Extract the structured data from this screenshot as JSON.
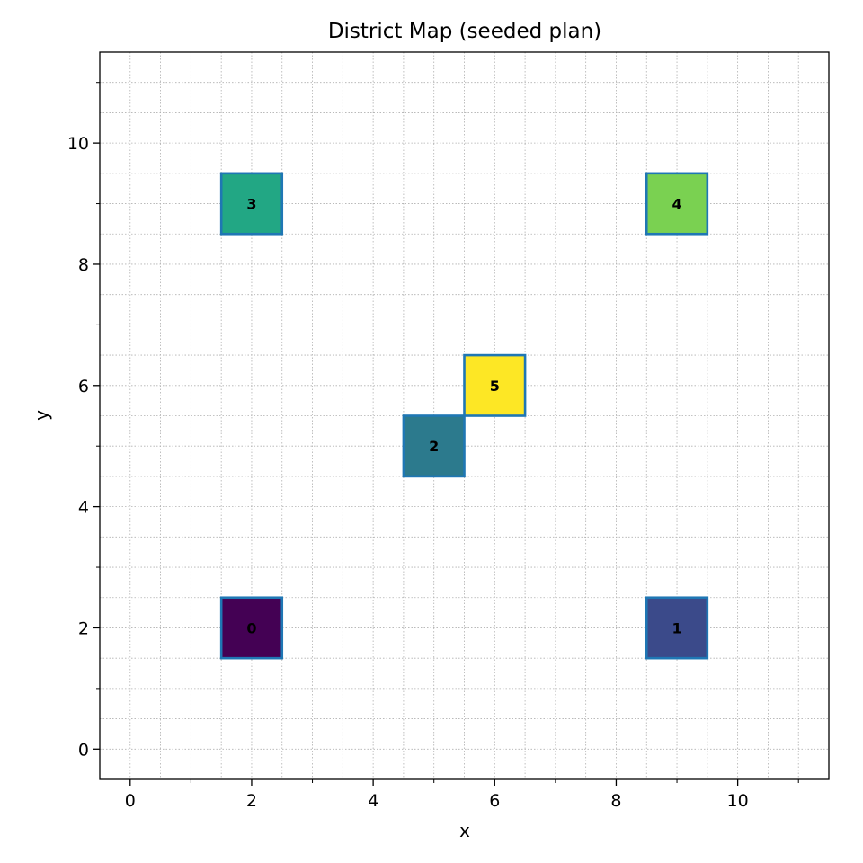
{
  "chart_data": {
    "type": "heatmap",
    "title": "District Map (seeded plan)",
    "xlabel": "x",
    "ylabel": "y",
    "xlim": [
      -0.5,
      11.5
    ],
    "ylim": [
      -0.5,
      11.5
    ],
    "x_ticks": [
      0,
      2,
      4,
      6,
      8,
      10
    ],
    "y_ticks": [
      0,
      2,
      4,
      6,
      8,
      10
    ],
    "x_tick_labels": [
      "0",
      "2",
      "4",
      "6",
      "8",
      "10"
    ],
    "y_tick_labels": [
      "0",
      "2",
      "4",
      "6",
      "8",
      "10"
    ],
    "minor_tick_step": 1,
    "grid": true,
    "edge_color": "#1f77b4",
    "cells": [
      {
        "label": "0",
        "x": 2,
        "y": 2,
        "color": "#440154"
      },
      {
        "label": "1",
        "x": 9,
        "y": 2,
        "color": "#3b4a8a"
      },
      {
        "label": "2",
        "x": 5,
        "y": 5,
        "color": "#2c7a8d"
      },
      {
        "label": "3",
        "x": 2,
        "y": 9,
        "color": "#22a784"
      },
      {
        "label": "4",
        "x": 9,
        "y": 9,
        "color": "#7ad151"
      },
      {
        "label": "5",
        "x": 6,
        "y": 6,
        "color": "#fde725"
      }
    ]
  }
}
